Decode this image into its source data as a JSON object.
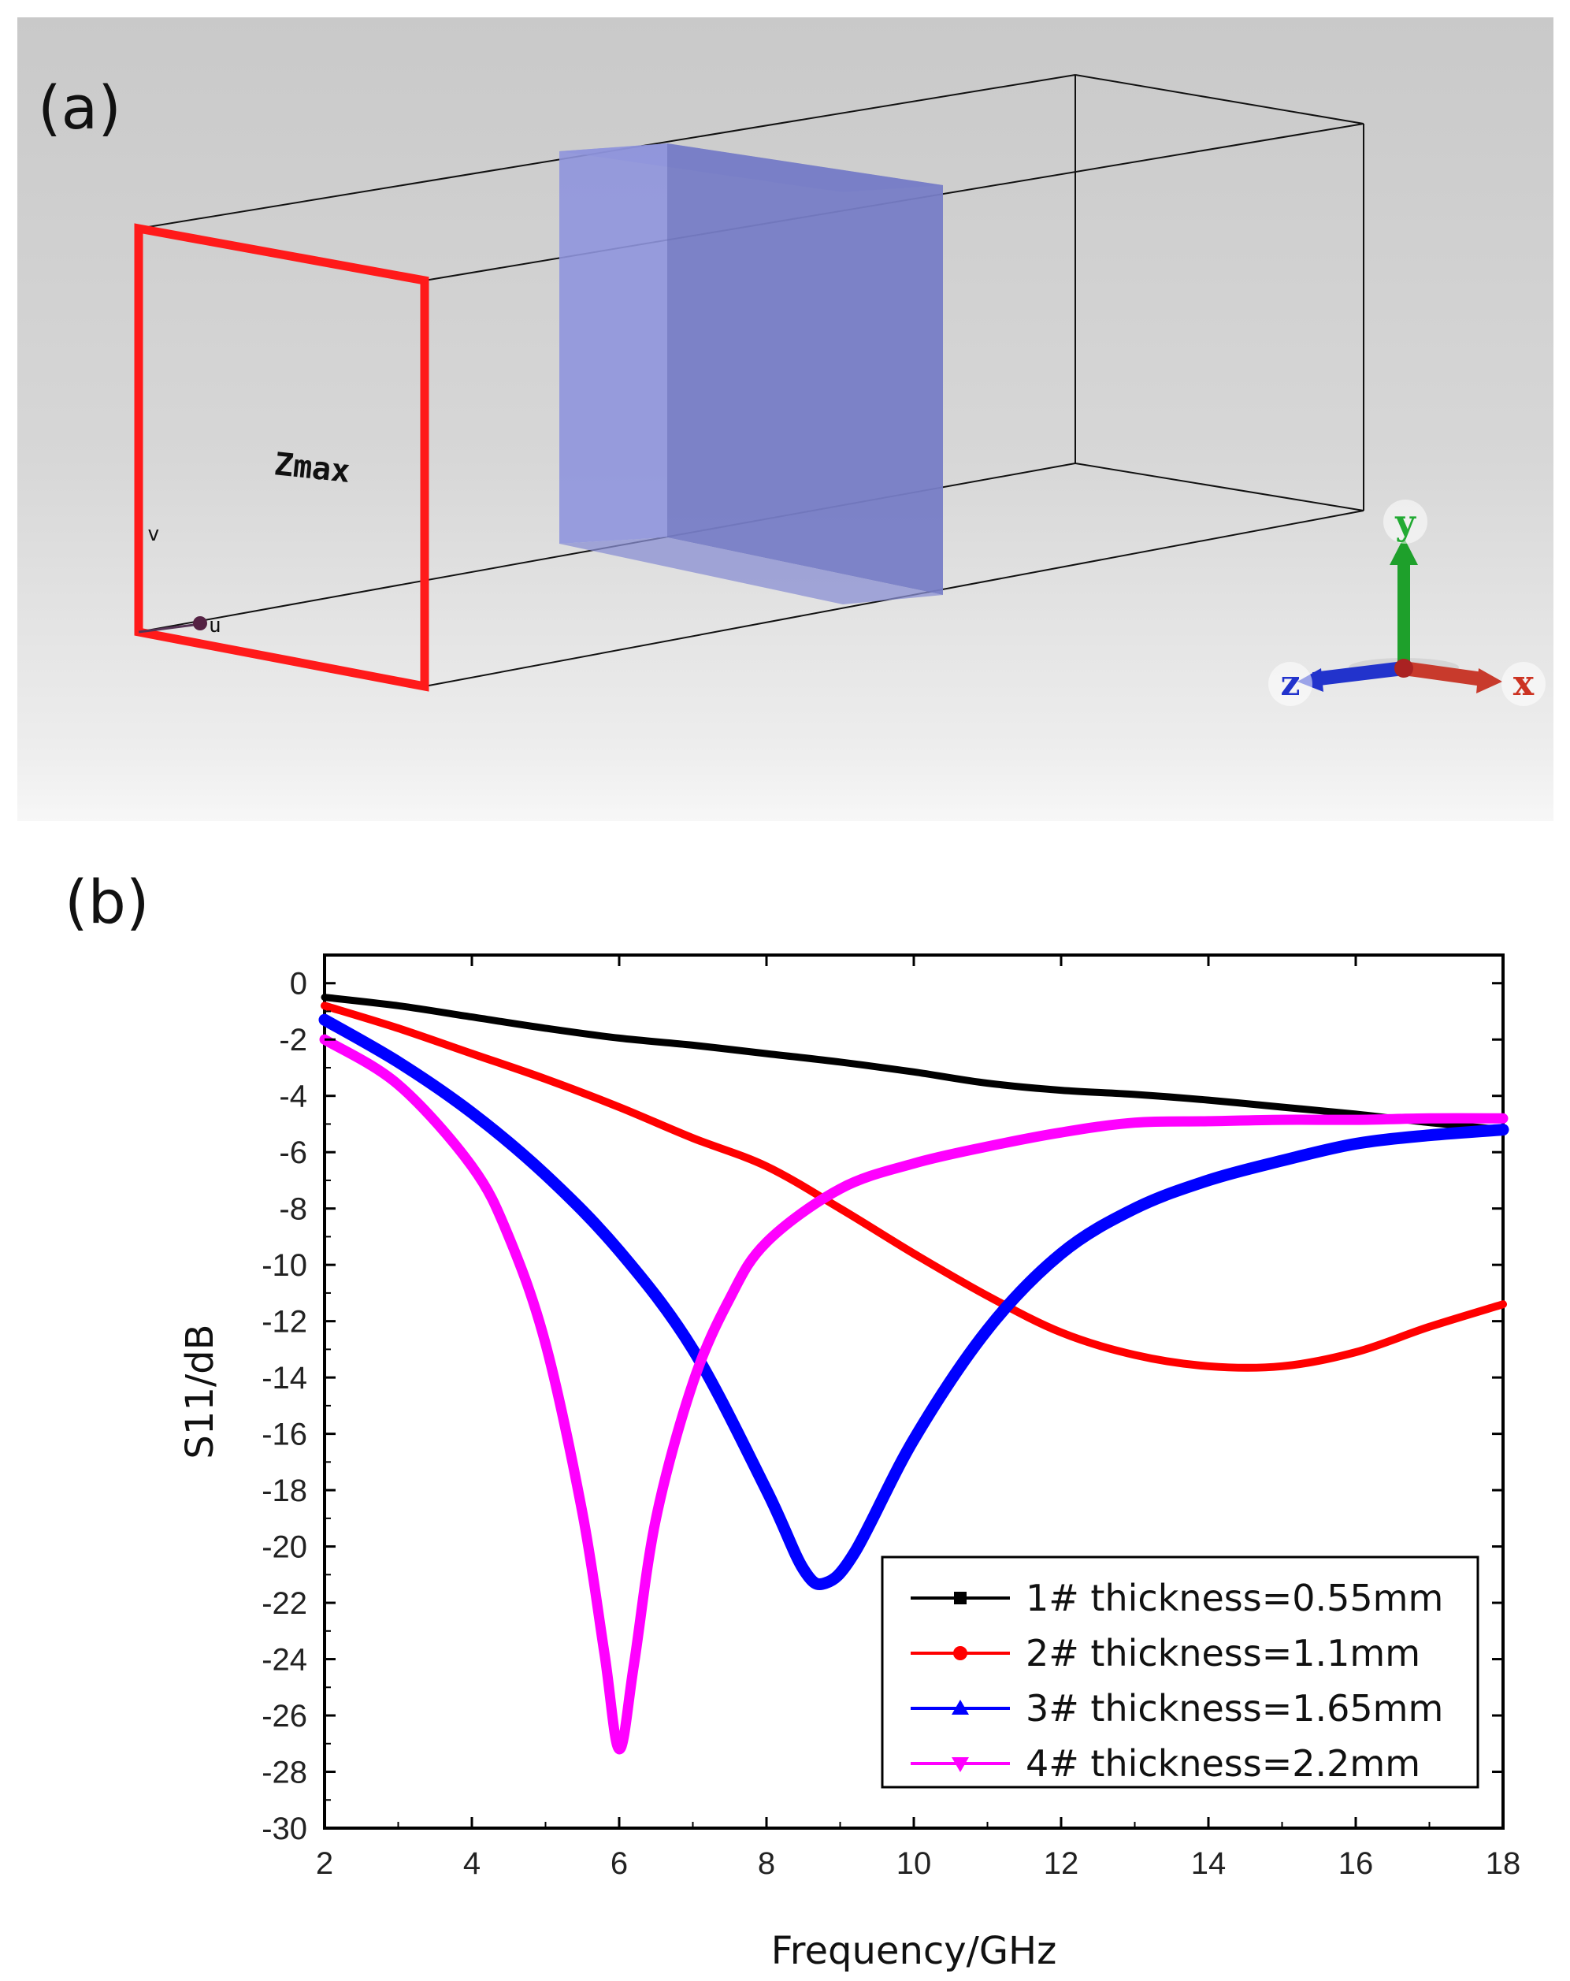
{
  "panel_a": {
    "label": "(a)",
    "port_label": "Zmax",
    "v_label": "v",
    "u_label": "u",
    "axis_y": "y",
    "axis_z": "z",
    "axis_x": "x",
    "colors": {
      "port_frame": "#ff1a1a",
      "slab": "#7c83d8",
      "axis_y": "#22aa33",
      "axis_z": "#2233cc",
      "axis_x": "#cc3322"
    }
  },
  "panel_b": {
    "label": "(b)"
  },
  "chart_data": {
    "type": "line",
    "title": "",
    "xlabel": "Frequency/GHz",
    "ylabel": "S11/dB",
    "xlim": [
      2,
      18
    ],
    "ylim": [
      -30,
      1
    ],
    "xticks": [
      2,
      4,
      6,
      8,
      10,
      12,
      14,
      16,
      18
    ],
    "yticks": [
      0,
      -2,
      -4,
      -6,
      -8,
      -10,
      -12,
      -14,
      -16,
      -18,
      -20,
      -22,
      -24,
      -26,
      -28,
      -30
    ],
    "legend_position": "bottom-right",
    "series": [
      {
        "name": "1# thickness=0.55mm",
        "color": "#000000",
        "marker": "square",
        "x": [
          2,
          3,
          4,
          5,
          6,
          7,
          8,
          9,
          10,
          11,
          12,
          13,
          14,
          15,
          16,
          17,
          18
        ],
        "y": [
          -0.5,
          -0.8,
          -1.2,
          -1.6,
          -1.95,
          -2.2,
          -2.5,
          -2.8,
          -3.15,
          -3.55,
          -3.8,
          -3.95,
          -4.15,
          -4.4,
          -4.65,
          -4.95,
          -5.2
        ]
      },
      {
        "name": "2# thickness=1.1mm",
        "color": "#ff0000",
        "marker": "circle",
        "x": [
          2,
          3,
          4,
          5,
          6,
          7,
          8,
          9,
          10,
          11,
          12,
          13,
          14,
          15,
          16,
          17,
          18
        ],
        "y": [
          -0.8,
          -1.6,
          -2.5,
          -3.4,
          -4.4,
          -5.5,
          -6.5,
          -8.0,
          -9.6,
          -11.1,
          -12.4,
          -13.2,
          -13.6,
          -13.6,
          -13.1,
          -12.2,
          -11.4
        ]
      },
      {
        "name": "3# thickness=1.65mm",
        "color": "#0000ff",
        "marker": "triangle-up",
        "x": [
          2,
          3,
          4,
          5,
          6,
          7,
          8,
          8.5,
          8.8,
          9.2,
          10,
          11,
          12,
          13,
          14,
          15,
          16,
          17,
          18
        ],
        "y": [
          -1.3,
          -2.8,
          -4.6,
          -6.8,
          -9.5,
          -13.0,
          -18.0,
          -20.8,
          -21.3,
          -20.2,
          -16.2,
          -12.3,
          -9.6,
          -8.0,
          -7.0,
          -6.3,
          -5.7,
          -5.4,
          -5.2
        ]
      },
      {
        "name": "4# thickness=2.2mm",
        "color": "#ff00ff",
        "marker": "triangle-down",
        "x": [
          2,
          3,
          4,
          4.5,
          5,
          5.5,
          5.8,
          6.0,
          6.2,
          6.5,
          7,
          7.5,
          8,
          9,
          10,
          11,
          12,
          13,
          14,
          15,
          16,
          17,
          18
        ],
        "y": [
          -2.0,
          -3.6,
          -6.5,
          -9.0,
          -12.8,
          -18.8,
          -23.8,
          -27.2,
          -24.2,
          -19.0,
          -14.2,
          -11.2,
          -9.2,
          -7.3,
          -6.4,
          -5.8,
          -5.3,
          -4.95,
          -4.9,
          -4.85,
          -4.85,
          -4.8,
          -4.8
        ]
      }
    ]
  }
}
